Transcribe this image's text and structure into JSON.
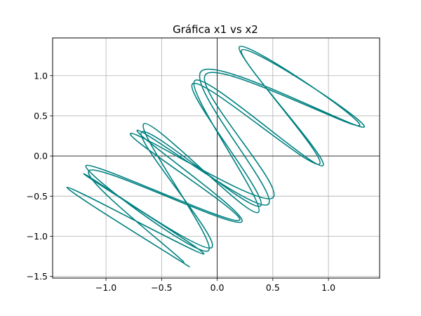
{
  "chart_data": {
    "type": "line",
    "title": "Gráfica x1 vs x2",
    "xlabel": "",
    "ylabel": "",
    "xlim": [
      -1.48,
      1.46
    ],
    "ylim": [
      -1.52,
      1.47
    ],
    "grid": true,
    "zero_lines": true,
    "x_ticks": [
      -1.0,
      -0.5,
      0.0,
      0.5,
      1.0
    ],
    "x_tick_labels": [
      "−1.0",
      "−0.5",
      "0.0",
      "0.5",
      "1.0"
    ],
    "y_ticks": [
      -1.5,
      -1.0,
      -0.5,
      0.0,
      0.5,
      1.0
    ],
    "y_tick_labels": [
      "−1.5",
      "−1.0",
      "−0.5",
      "0.0",
      "0.5",
      "1.0"
    ],
    "series": [
      {
        "color": "#008080",
        "points": [
          [
            -0.25,
            -1.38
          ],
          [
            -1.35,
            -0.39
          ],
          [
            -0.12,
            -1.22
          ],
          [
            -1.2,
            -0.22
          ],
          [
            -0.05,
            -1.14
          ],
          [
            -0.68,
            0.3
          ],
          [
            0.39,
            -0.62
          ],
          [
            -0.22,
            0.9
          ],
          [
            0.92,
            -0.1
          ],
          [
            0.2,
            1.36
          ],
          [
            1.28,
            0.38
          ],
          [
            -0.1,
            1.02
          ],
          [
            0.5,
            -0.52
          ],
          [
            -0.78,
            0.28
          ],
          [
            0.2,
            -0.8
          ],
          [
            -1.18,
            -0.12
          ],
          [
            -0.08,
            -1.18
          ],
          [
            -0.66,
            0.4
          ],
          [
            0.37,
            -0.7
          ],
          [
            -0.2,
            0.94
          ],
          [
            0.95,
            -0.12
          ],
          [
            0.22,
            1.32
          ],
          [
            1.32,
            0.36
          ],
          [
            -0.14,
            1.06
          ],
          [
            0.46,
            -0.6
          ],
          [
            -0.72,
            0.32
          ],
          [
            0.22,
            -0.82
          ],
          [
            -1.15,
            -0.18
          ],
          [
            -0.3,
            -1.32
          ]
        ]
      }
    ]
  }
}
